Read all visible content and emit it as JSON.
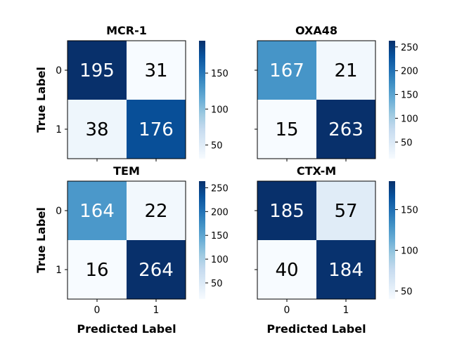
{
  "chart_data": [
    {
      "type": "heatmap",
      "title": "MCR-1",
      "xlabel": "",
      "ylabel": "True Label",
      "x_categories": [
        "0",
        "1"
      ],
      "y_categories": [
        "0",
        "1"
      ],
      "matrix": [
        [
          195,
          31
        ],
        [
          38,
          176
        ]
      ],
      "colormap": "Blues",
      "colorbar_ticks": [
        50,
        100,
        150
      ]
    },
    {
      "type": "heatmap",
      "title": "OXA48",
      "xlabel": "",
      "ylabel": "",
      "x_categories": [
        "0",
        "1"
      ],
      "y_categories": [
        "0",
        "1"
      ],
      "matrix": [
        [
          167,
          21
        ],
        [
          15,
          263
        ]
      ],
      "colormap": "Blues",
      "colorbar_ticks": [
        50,
        100,
        150,
        200,
        250
      ]
    },
    {
      "type": "heatmap",
      "title": "TEM",
      "xlabel": "Predicted Label",
      "ylabel": "True Label",
      "x_categories": [
        "0",
        "1"
      ],
      "y_categories": [
        "0",
        "1"
      ],
      "matrix": [
        [
          164,
          22
        ],
        [
          16,
          264
        ]
      ],
      "colormap": "Blues",
      "colorbar_ticks": [
        50,
        100,
        150,
        200,
        250
      ]
    },
    {
      "type": "heatmap",
      "title": "CTX-M",
      "xlabel": "Predicted Label",
      "ylabel": "",
      "x_categories": [
        "0",
        "1"
      ],
      "y_categories": [
        "0",
        "1"
      ],
      "matrix": [
        [
          185,
          57
        ],
        [
          40,
          184
        ]
      ],
      "colormap": "Blues",
      "colorbar_ticks": [
        50,
        100,
        150
      ]
    }
  ]
}
